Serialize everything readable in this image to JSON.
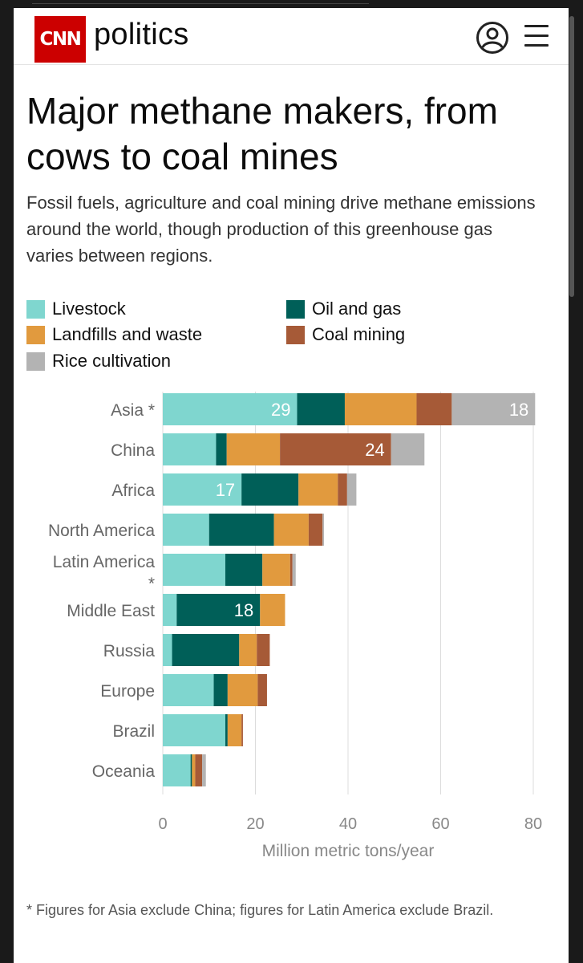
{
  "header": {
    "logo_text": "CNN",
    "section": "politics"
  },
  "article": {
    "title": "Major methane makers, from cows to coal mines",
    "subtitle": "Fossil fuels, agriculture and coal mining drive methane emissions around the world, though production of this greenhouse gas varies between regions.",
    "footnote": "* Figures for Asia exclude China; figures for Latin America exclude Brazil."
  },
  "legend": [
    {
      "label": "Livestock",
      "color": "#7fd6cf"
    },
    {
      "label": "Oil and gas",
      "color": "#005f58"
    },
    {
      "label": "Landfills and waste",
      "color": "#e19a3e"
    },
    {
      "label": "Coal mining",
      "color": "#a65a37"
    },
    {
      "label": "Rice cultivation",
      "color": "#b3b3b3"
    }
  ],
  "chart_data": {
    "type": "bar",
    "orientation": "horizontal",
    "stacked": true,
    "xlabel": "Million metric tons/year",
    "xlim": [
      0,
      80
    ],
    "xticks": [
      0,
      20,
      40,
      60,
      80
    ],
    "grid": true,
    "categories": [
      "Asia *",
      "China",
      "Africa",
      "North America",
      "Latin America *",
      "Middle East",
      "Russia",
      "Europe",
      "Brazil",
      "Oceania"
    ],
    "series": [
      {
        "name": "Livestock",
        "color": "#7fd6cf",
        "values": [
          29,
          11.5,
          17,
          10,
          13.5,
          3,
          2,
          11,
          13.5,
          6
        ]
      },
      {
        "name": "Oil and gas",
        "color": "#005f58",
        "values": [
          10.3,
          2.3,
          12.3,
          14,
          8,
          18,
          14.5,
          3,
          0.5,
          0.3
        ]
      },
      {
        "name": "Landfills and waste",
        "color": "#e19a3e",
        "values": [
          15.5,
          11.5,
          8.5,
          7.5,
          6,
          5.4,
          3.8,
          6.5,
          3,
          0.7
        ]
      },
      {
        "name": "Coal mining",
        "color": "#a65a37",
        "values": [
          7.6,
          24,
          2,
          3,
          0.5,
          0,
          2.8,
          2,
          0.3,
          1.5
        ]
      },
      {
        "name": "Rice cultivation",
        "color": "#b3b3b3",
        "values": [
          18,
          7.2,
          2,
          0.3,
          0.7,
          0,
          0,
          0,
          0,
          0.8
        ]
      }
    ],
    "data_labels": [
      {
        "category": "Asia *",
        "series": "Livestock",
        "text": "29"
      },
      {
        "category": "Asia *",
        "series": "Rice cultivation",
        "text": "18"
      },
      {
        "category": "China",
        "series": "Coal mining",
        "text": "24"
      },
      {
        "category": "Africa",
        "series": "Livestock",
        "text": "17"
      },
      {
        "category": "Middle East",
        "series": "Oil and gas",
        "text": "18"
      }
    ]
  }
}
